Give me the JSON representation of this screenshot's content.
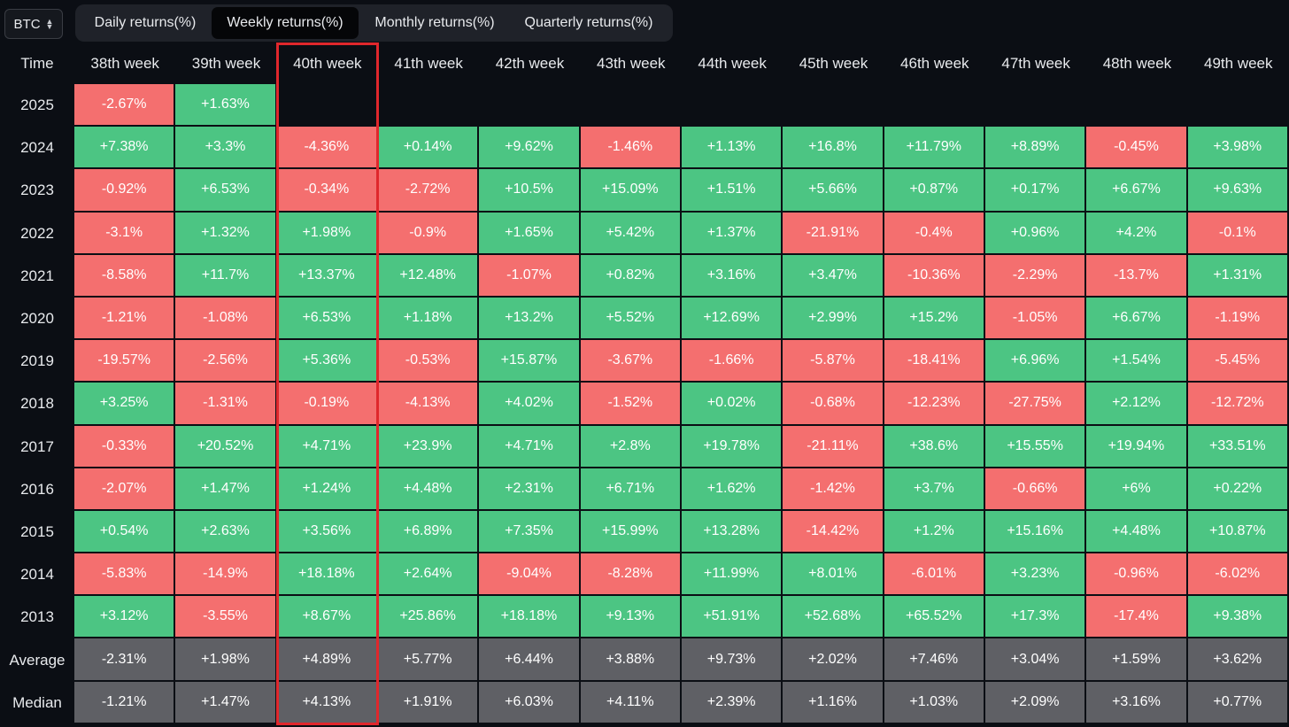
{
  "asset_select": {
    "value": "BTC"
  },
  "tabs": [
    {
      "label": "Daily returns(%)",
      "active": false,
      "width": 150
    },
    {
      "label": "Weekly returns(%)",
      "active": true,
      "width": 166
    },
    {
      "label": "Monthly returns(%)",
      "active": false,
      "width": 172
    },
    {
      "label": "Quarterly returns(%)",
      "active": false,
      "width": 176
    }
  ],
  "colors": {
    "positive": "#4cc583",
    "negative": "#f46f6f",
    "aggregate": "#5f6065",
    "highlight": "#e0272c"
  },
  "table": {
    "corner_label": "Time",
    "columns": [
      "38th week",
      "39th week",
      "40th week",
      "41th week",
      "42th week",
      "43th week",
      "44th week",
      "45th week",
      "46th week",
      "47th week",
      "48th week",
      "49th week"
    ],
    "highlighted_column": "40th week",
    "rows": [
      {
        "label": "2025",
        "values": [
          "-2.67%",
          "+1.63%",
          "",
          "",
          "",
          "",
          "",
          "",
          "",
          "",
          "",
          ""
        ]
      },
      {
        "label": "2024",
        "values": [
          "+7.38%",
          "+3.3%",
          "-4.36%",
          "+0.14%",
          "+9.62%",
          "-1.46%",
          "+1.13%",
          "+16.8%",
          "+11.79%",
          "+8.89%",
          "-0.45%",
          "+3.98%"
        ]
      },
      {
        "label": "2023",
        "values": [
          "-0.92%",
          "+6.53%",
          "-0.34%",
          "-2.72%",
          "+10.5%",
          "+15.09%",
          "+1.51%",
          "+5.66%",
          "+0.87%",
          "+0.17%",
          "+6.67%",
          "+9.63%"
        ]
      },
      {
        "label": "2022",
        "values": [
          "-3.1%",
          "+1.32%",
          "+1.98%",
          "-0.9%",
          "+1.65%",
          "+5.42%",
          "+1.37%",
          "-21.91%",
          "-0.4%",
          "+0.96%",
          "+4.2%",
          "-0.1%"
        ]
      },
      {
        "label": "2021",
        "values": [
          "-8.58%",
          "+11.7%",
          "+13.37%",
          "+12.48%",
          "-1.07%",
          "+0.82%",
          "+3.16%",
          "+3.47%",
          "-10.36%",
          "-2.29%",
          "-13.7%",
          "+1.31%"
        ]
      },
      {
        "label": "2020",
        "values": [
          "-1.21%",
          "-1.08%",
          "+6.53%",
          "+1.18%",
          "+13.2%",
          "+5.52%",
          "+12.69%",
          "+2.99%",
          "+15.2%",
          "-1.05%",
          "+6.67%",
          "-1.19%"
        ]
      },
      {
        "label": "2019",
        "values": [
          "-19.57%",
          "-2.56%",
          "+5.36%",
          "-0.53%",
          "+15.87%",
          "-3.67%",
          "-1.66%",
          "-5.87%",
          "-18.41%",
          "+6.96%",
          "+1.54%",
          "-5.45%"
        ]
      },
      {
        "label": "2018",
        "values": [
          "+3.25%",
          "-1.31%",
          "-0.19%",
          "-4.13%",
          "+4.02%",
          "-1.52%",
          "+0.02%",
          "-0.68%",
          "-12.23%",
          "-27.75%",
          "+2.12%",
          "-12.72%"
        ]
      },
      {
        "label": "2017",
        "values": [
          "-0.33%",
          "+20.52%",
          "+4.71%",
          "+23.9%",
          "+4.71%",
          "+2.8%",
          "+19.78%",
          "-21.11%",
          "+38.6%",
          "+15.55%",
          "+19.94%",
          "+33.51%"
        ]
      },
      {
        "label": "2016",
        "values": [
          "-2.07%",
          "+1.47%",
          "+1.24%",
          "+4.48%",
          "+2.31%",
          "+6.71%",
          "+1.62%",
          "-1.42%",
          "+3.7%",
          "-0.66%",
          "+6%",
          "+0.22%"
        ]
      },
      {
        "label": "2015",
        "values": [
          "+0.54%",
          "+2.63%",
          "+3.56%",
          "+6.89%",
          "+7.35%",
          "+15.99%",
          "+13.28%",
          "-14.42%",
          "+1.2%",
          "+15.16%",
          "+4.48%",
          "+10.87%"
        ]
      },
      {
        "label": "2014",
        "values": [
          "-5.83%",
          "-14.9%",
          "+18.18%",
          "+2.64%",
          "-9.04%",
          "-8.28%",
          "+11.99%",
          "+8.01%",
          "-6.01%",
          "+3.23%",
          "-0.96%",
          "-6.02%"
        ]
      },
      {
        "label": "2013",
        "values": [
          "+3.12%",
          "-3.55%",
          "+8.67%",
          "+25.86%",
          "+18.18%",
          "+9.13%",
          "+51.91%",
          "+52.68%",
          "+65.52%",
          "+17.3%",
          "-17.4%",
          "+9.38%"
        ]
      },
      {
        "label": "Average",
        "aggregate": true,
        "values": [
          "-2.31%",
          "+1.98%",
          "+4.89%",
          "+5.77%",
          "+6.44%",
          "+3.88%",
          "+9.73%",
          "+2.02%",
          "+7.46%",
          "+3.04%",
          "+1.59%",
          "+3.62%"
        ]
      },
      {
        "label": "Median",
        "aggregate": true,
        "values": [
          "-1.21%",
          "+1.47%",
          "+4.13%",
          "+1.91%",
          "+6.03%",
          "+4.11%",
          "+2.39%",
          "+1.16%",
          "+1.03%",
          "+2.09%",
          "+3.16%",
          "+0.77%"
        ]
      }
    ]
  }
}
